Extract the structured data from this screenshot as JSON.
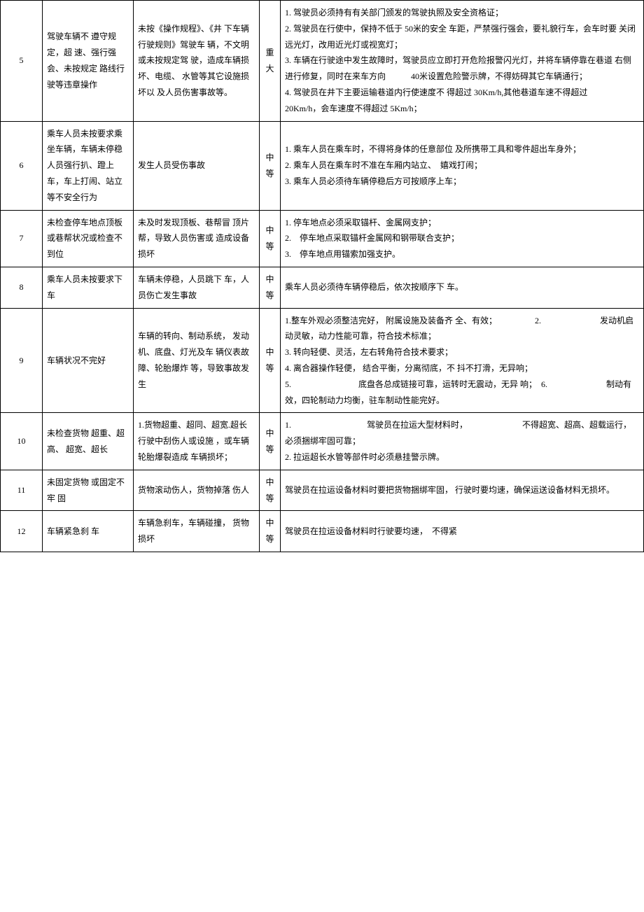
{
  "table": {
    "rows": [
      {
        "num": "5",
        "hazard": "驾驶车辆不 遵守规定，超 速、强行强 会、未按规定 路线行驶等违章操作",
        "consequence": "未按《操作规程》、《井 下车辆行驶规则》驾驶车 辆，不文明或未按规定驾 驶，造成车辆损坏、电缆、 水管等其它设施损坏以 及人员伤害事故等。",
        "level": "重大",
        "measures": "1. 驾驶员必须持有有关部门颁发的驾驶执照及安全资格证；\n2. 驾驶员在行使中，保持不低于 50米的安全 车距，严禁强行强会，要礼貌行车，会车时要 关闭远光灯，改用近光灯或视宽灯；\n3.  车辆在行驶途中发生故障时，驾驶员应立即打开危险报警闪光灯，并将车辆停靠在巷道 右侧进行修复，同时在来车方向　　　40米设置危险警示牌，不得妨碍其它车辆通行；\n4. 驾驶员在井下主要运输巷道内行使速度不 得超过 30Km/h,其他巷道车速不得超过\n20Km/h，会车速度不得超过 5Km/h；"
      },
      {
        "num": "6",
        "hazard": "乘车人员未按要求乘坐车辆，车辆未停稳人员强行扒、蹬上车，车上打闹、站立等不安全行为",
        "consequence": "发生人员受伤事故",
        "level": "中等",
        "measures": "1. 乘车人员在乘车时，不得将身体的任意部位 及所携带工具和零件超出车身外；\n2. 乘车人员在乘车时不准在车厢内站立、　嬉戏打闹；\n3. 乘车人员必须待车辆停稳后方可按顺序上车；"
      },
      {
        "num": "7",
        "hazard": "未检查停车地点顶板或巷帮状况或检查不到位",
        "consequence": "未及时发现顶板、巷帮冒 顶片帮，导致人员伤害或 造成设备损坏",
        "level": "中等",
        "measures": "1. 停车地点必须采取锚杆、金属网支护；\n2.　停车地点采取锚杆金属网和钢带联合支护；\n3.　停车地点用锚索加强支护。"
      },
      {
        "num": "8",
        "hazard": "乘车人员未按要求下车",
        "consequence": "车辆未停稳，人员跳下 车，人员伤亡发生事故",
        "level": "中等",
        "measures": "乘车人员必须待车辆停稳后，依次按顺序下 车。"
      },
      {
        "num": "9",
        "hazard": "车辆状况不完好",
        "consequence": "车辆的转向、制动系统， 发动机、底盘、灯光及车 辆仪表故障、轮胎爆炸 等，导致事故发生",
        "level": "中等",
        "measures": "1.整车外观必须整洁完好， 附属设施及装备齐 全、有效；　　　　　2.　　　　　　　发动机启动灵敏，动力性能可靠，符合技术标准；\n3. 转向轻便、灵活，左右转角符合技术要求；\n4. 离合器操作轻便， 结合平衡，分离彻底，不 抖不打滑，无异响；\n5.　　　　　　　　底盘各总成链接可靠，运转时无震动，无异 响；　6.　　　　　　　制动有效，四轮制动力均衡，驻车制动性能完好。"
      },
      {
        "num": "10",
        "hazard": "未检查货物 超重、超高、 超宽、超长",
        "consequence": "1.货物超重、超同、超宽.超长行驶中刮伤人或设施 ，或车辆轮胎爆裂造成 车辆损坏；",
        "level": "中等",
        "measures": "1.　　　　　　　　　驾驶员在拉运大型材料时，　　　　　　　不得超宽、超高、超载运行，必须捆绑牢固可靠；\n2. 拉运超长水管等部件时必须悬挂警示牌。"
      },
      {
        "num": "11",
        "hazard": "未固定货物 或固定不牢 固",
        "consequence": "货物滚动伤人，货物掉落 伤人",
        "level": "中等",
        "measures": "驾驶员在拉运设备材料时要把货物捆绑牢固， 行驶时要均速，确保运送设备材料无损坏。"
      },
      {
        "num": "12",
        "hazard": "车辆紧急刹 车",
        "consequence": "车辆急刹车，车辆碰撞， 货物损坏",
        "level": "中等",
        "measures": "驾驶员在拉运设备材料时行驶要均速，　不得紧"
      }
    ]
  }
}
